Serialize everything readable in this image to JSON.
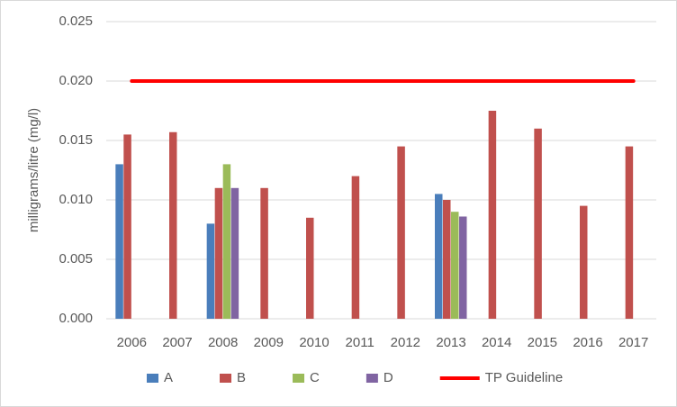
{
  "chart_data": {
    "type": "bar",
    "y_label": "milligrams/litre (mg/l)",
    "categories": [
      "2006",
      "2007",
      "2008",
      "2009",
      "2010",
      "2011",
      "2012",
      "2013",
      "2014",
      "2015",
      "2016",
      "2017"
    ],
    "series": [
      {
        "name": "A",
        "color": "#4a7ebb",
        "values": [
          0.013,
          null,
          0.008,
          null,
          null,
          null,
          null,
          0.0105,
          null,
          null,
          null,
          null
        ]
      },
      {
        "name": "B",
        "color": "#c0504d",
        "values": [
          0.0155,
          0.0157,
          0.011,
          0.011,
          0.0085,
          0.012,
          0.0145,
          0.01,
          0.0175,
          0.016,
          0.0095,
          0.0145
        ]
      },
      {
        "name": "C",
        "color": "#9bbb59",
        "values": [
          null,
          null,
          0.013,
          null,
          null,
          null,
          null,
          0.009,
          null,
          null,
          null,
          null
        ]
      },
      {
        "name": "D",
        "color": "#8064a2",
        "values": [
          null,
          null,
          0.011,
          null,
          null,
          null,
          null,
          0.0086,
          null,
          null,
          null,
          null
        ]
      },
      {
        "name": "TP Guideline",
        "type": "line",
        "color": "#ff0000",
        "values": [
          0.02,
          0.02,
          0.02,
          0.02,
          0.02,
          0.02,
          0.02,
          0.02,
          0.02,
          0.02,
          0.02,
          0.02
        ]
      }
    ],
    "ylim": [
      0,
      0.025
    ],
    "yticks": [
      {
        "value": 0,
        "label": "0.000"
      },
      {
        "value": 0.005,
        "label": "0.005"
      },
      {
        "value": 0.01,
        "label": "0.010"
      },
      {
        "value": 0.015,
        "label": "0.015"
      },
      {
        "value": 0.02,
        "label": "0.020"
      },
      {
        "value": 0.025,
        "label": "0.025"
      }
    ],
    "grid": true,
    "legend": "bottom"
  }
}
